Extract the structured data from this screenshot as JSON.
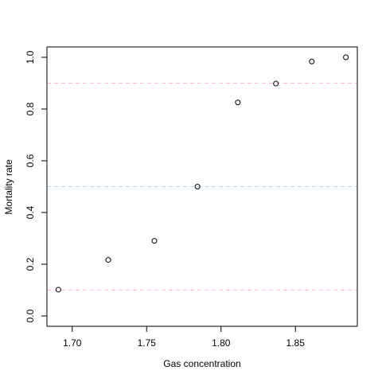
{
  "chart_data": {
    "type": "scatter",
    "x_label": "Gas concentration",
    "y_label": "Mortality rate",
    "x": [
      1.6907,
      1.7242,
      1.7552,
      1.7842,
      1.8113,
      1.8369,
      1.861,
      1.8839
    ],
    "values": [
      0.1017,
      0.2167,
      0.2903,
      0.5,
      0.8254,
      0.8983,
      0.9839,
      1.0
    ],
    "color": "#000000",
    "xlim": [
      1.683,
      1.8916
    ],
    "ylim": [
      -0.04,
      1.04
    ],
    "xticks": [
      {
        "value": 1.7,
        "label": "1.70"
      },
      {
        "value": 1.75,
        "label": "1.75"
      },
      {
        "value": 1.8,
        "label": "1.80"
      },
      {
        "value": 1.85,
        "label": "1.85"
      }
    ],
    "yticks": [
      {
        "value": 0,
        "label": "0.0"
      },
      0.2,
      0.4,
      0.6,
      0.8,
      {
        "value": 1,
        "label": "1.0"
      }
    ],
    "hlines": [
      {
        "value": 0.1,
        "color": "#ffc0cb"
      },
      {
        "value": 0.5,
        "color": "#add8e6"
      },
      {
        "value": 0.9,
        "color": "#ffc0cb"
      }
    ]
  }
}
